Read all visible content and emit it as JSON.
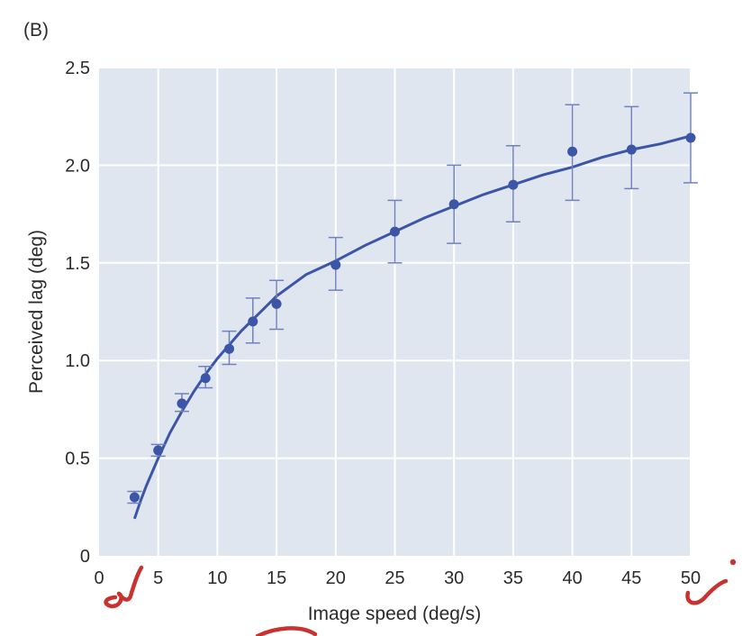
{
  "panel_label": "(B)",
  "colors": {
    "plot_background": "#dfe6f0",
    "grid": "#ffffff",
    "series": "#3d55a6",
    "error_bar": "#6f82bd",
    "text": "#2b2b2b",
    "annotation_ink": "#c8332f"
  },
  "chart_data": {
    "type": "scatter",
    "title": "",
    "xlabel": "Image speed (deg/s)",
    "ylabel": "Perceived lag (deg)",
    "xlim": [
      0,
      50
    ],
    "ylim": [
      0,
      2.5
    ],
    "grid": true,
    "x_ticks": [
      0,
      5,
      10,
      15,
      20,
      25,
      30,
      35,
      40,
      45,
      50
    ],
    "y_ticks": [
      0,
      0.5,
      1.0,
      1.5,
      2.0,
      2.5
    ],
    "x_tick_labels": [
      "0",
      "5",
      "10",
      "15",
      "20",
      "25",
      "30",
      "35",
      "40",
      "45",
      "50"
    ],
    "y_tick_labels": [
      "0",
      "0.5",
      "1.0",
      "1.5",
      "2.0",
      "2.5"
    ],
    "points": [
      {
        "x": 3,
        "y": 0.3,
        "err_low": 0.27,
        "err_high": 0.33
      },
      {
        "x": 5,
        "y": 0.54,
        "err_low": 0.51,
        "err_high": 0.57
      },
      {
        "x": 7,
        "y": 0.78,
        "err_low": 0.74,
        "err_high": 0.83
      },
      {
        "x": 9,
        "y": 0.91,
        "err_low": 0.86,
        "err_high": 0.97
      },
      {
        "x": 11,
        "y": 1.06,
        "err_low": 0.98,
        "err_high": 1.15
      },
      {
        "x": 13,
        "y": 1.2,
        "err_low": 1.09,
        "err_high": 1.32
      },
      {
        "x": 15,
        "y": 1.29,
        "err_low": 1.16,
        "err_high": 1.41
      },
      {
        "x": 20,
        "y": 1.49,
        "err_low": 1.36,
        "err_high": 1.63
      },
      {
        "x": 25,
        "y": 1.66,
        "err_low": 1.5,
        "err_high": 1.82
      },
      {
        "x": 30,
        "y": 1.8,
        "err_low": 1.6,
        "err_high": 2.0
      },
      {
        "x": 35,
        "y": 1.9,
        "err_low": 1.71,
        "err_high": 2.1
      },
      {
        "x": 40,
        "y": 2.07,
        "err_low": 1.82,
        "err_high": 2.31
      },
      {
        "x": 45,
        "y": 2.08,
        "err_low": 1.88,
        "err_high": 2.3
      },
      {
        "x": 50,
        "y": 2.14,
        "err_low": 1.91,
        "err_high": 2.37
      }
    ],
    "fit_curve": {
      "x": [
        3,
        3.5,
        4,
        5,
        6,
        7,
        8,
        9,
        10,
        11,
        12,
        13,
        14,
        15,
        17.5,
        20,
        22.5,
        25,
        27.5,
        30,
        32.5,
        35,
        37.5,
        40,
        42.5,
        45,
        47.5,
        50
      ],
      "y": [
        0.19,
        0.28,
        0.36,
        0.5,
        0.63,
        0.74,
        0.84,
        0.93,
        1.01,
        1.08,
        1.15,
        1.21,
        1.27,
        1.33,
        1.44,
        1.51,
        1.59,
        1.66,
        1.73,
        1.79,
        1.85,
        1.9,
        1.95,
        1.99,
        2.04,
        2.08,
        2.11,
        2.15
      ]
    }
  }
}
